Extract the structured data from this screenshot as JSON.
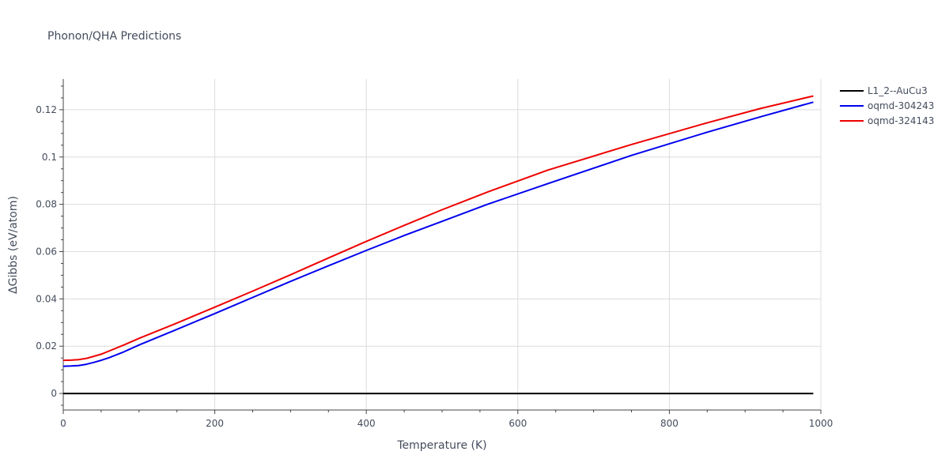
{
  "chart_data": {
    "type": "line",
    "title": "Phonon/QHA Predictions",
    "xlabel": "Temperature (K)",
    "ylabel": "ΔGibbs (eV/atom)",
    "xlim": [
      0,
      1000
    ],
    "ylim": [
      -0.007,
      0.133
    ],
    "xticks": [
      0,
      200,
      400,
      600,
      800,
      1000
    ],
    "yticks": [
      0,
      0.02,
      0.04,
      0.06,
      0.08,
      0.1,
      0.12
    ],
    "ytick_labels": [
      "0",
      "0.02",
      "0.04",
      "0.06",
      "0.08",
      "0.1",
      "0.12"
    ],
    "grid": true,
    "legend_position": "right",
    "series": [
      {
        "name": "L1_2--AuCu3",
        "color": "#000000",
        "x": [
          0,
          990
        ],
        "y": [
          0,
          0
        ]
      },
      {
        "name": "oqmd-304243",
        "color": "#0000ee",
        "x": [
          0,
          10,
          20,
          30,
          40,
          50,
          60,
          80,
          100,
          150,
          200,
          250,
          300,
          350,
          400,
          450,
          500,
          560,
          640,
          750,
          850,
          920,
          990
        ],
        "y": [
          0.0115,
          0.0116,
          0.0118,
          0.0123,
          0.0131,
          0.014,
          0.0151,
          0.0176,
          0.0205,
          0.0271,
          0.0338,
          0.0406,
          0.0474,
          0.054,
          0.0605,
          0.0668,
          0.0728,
          0.08,
          0.0888,
          0.1007,
          0.1105,
          0.117,
          0.1232
        ]
      },
      {
        "name": "oqmd-324143",
        "color": "#ee0000",
        "x": [
          0,
          10,
          20,
          30,
          40,
          50,
          60,
          80,
          100,
          150,
          200,
          250,
          300,
          350,
          400,
          450,
          500,
          560,
          640,
          750,
          850,
          920,
          990
        ],
        "y": [
          0.014,
          0.0141,
          0.0143,
          0.0148,
          0.0157,
          0.0166,
          0.0179,
          0.0205,
          0.0233,
          0.0298,
          0.0365,
          0.0433,
          0.0502,
          0.0573,
          0.0643,
          0.0711,
          0.0777,
          0.0852,
          0.0945,
          0.1053,
          0.1145,
          0.1205,
          0.1258
        ]
      }
    ]
  }
}
